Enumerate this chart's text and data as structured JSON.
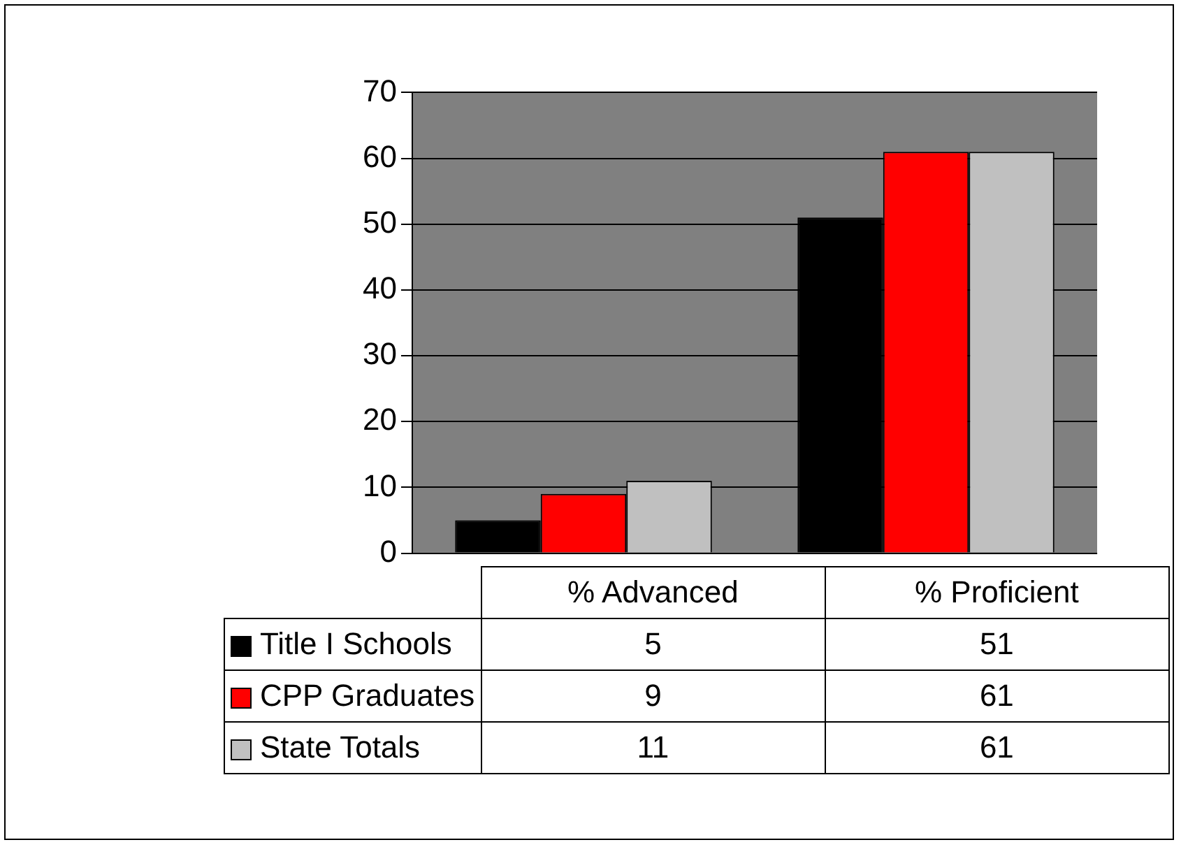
{
  "chart_data": {
    "type": "bar",
    "categories": [
      "% Advanced",
      "% Proficient"
    ],
    "series": [
      {
        "name": "Title I Schools",
        "color": "#000000",
        "values": [
          5,
          51
        ]
      },
      {
        "name": "CPP Graduates",
        "color": "#ff0000",
        "values": [
          9,
          61
        ]
      },
      {
        "name": "State Totals",
        "color": "#c0c0c0",
        "values": [
          11,
          61
        ]
      }
    ],
    "ylim": [
      0,
      70
    ],
    "yticks": [
      0,
      10,
      20,
      30,
      40,
      50,
      60,
      70
    ],
    "grid": "y",
    "legend": "bottom",
    "data_labels": true
  }
}
